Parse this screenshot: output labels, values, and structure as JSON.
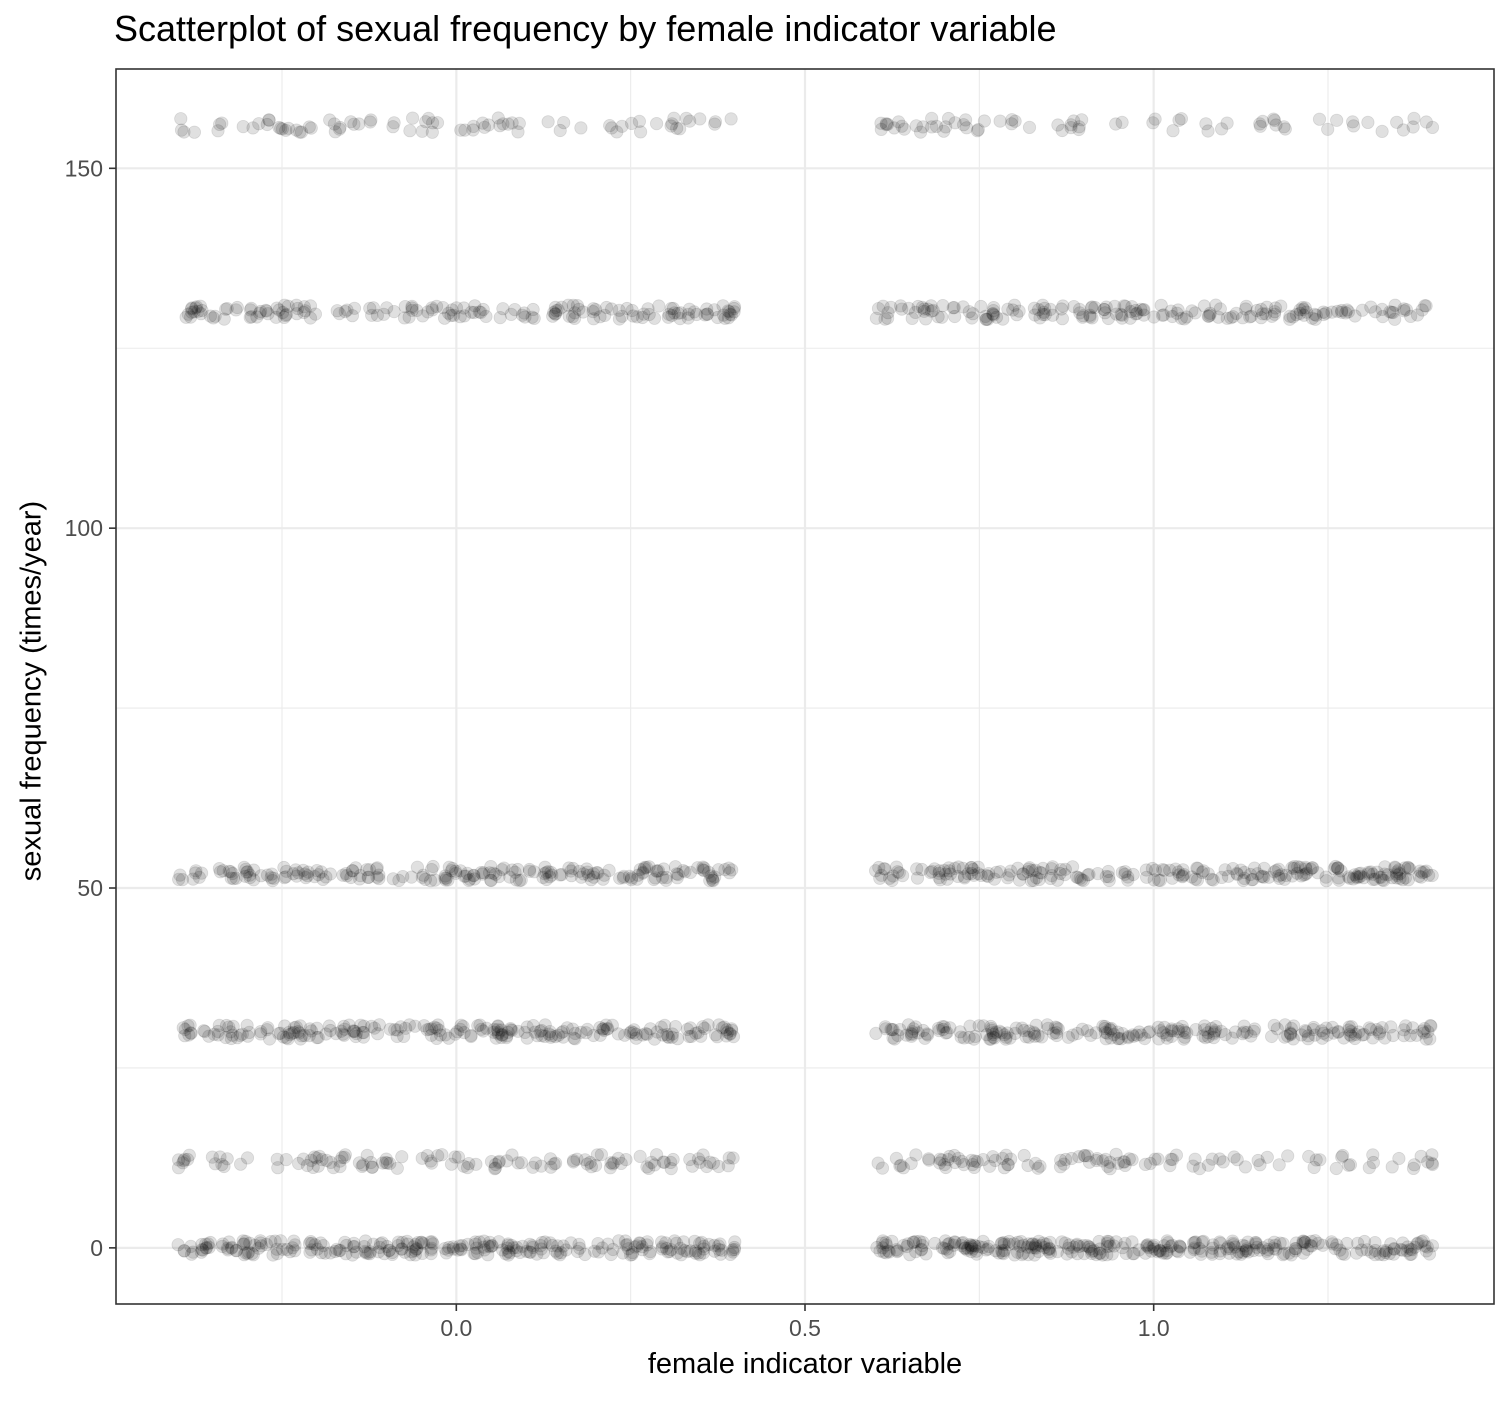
{
  "chart_data": {
    "type": "scatter",
    "title": "Scatterplot of sexual frequency by female indicator variable",
    "xlabel": "female indicator variable",
    "ylabel": "sexual frequency (times/year)",
    "x_ticks": [
      "0.0",
      "0.5",
      "1.0"
    ],
    "y_ticks": [
      "0",
      "50",
      "100",
      "150"
    ],
    "xlim": [
      -0.488,
      1.488
    ],
    "ylim": [
      -7.8,
      163.8
    ],
    "grid": true,
    "legend": "none",
    "jitter": {
      "x_width": 0.4,
      "y_height": 1.0
    },
    "point_style": {
      "color": "#000000",
      "alpha": 0.12
    },
    "series": [
      {
        "groups": [
          {
            "x": 0,
            "y": 0,
            "n": 260
          },
          {
            "x": 0,
            "y": 12,
            "n": 120
          },
          {
            "x": 0,
            "y": 30,
            "n": 220
          },
          {
            "x": 0,
            "y": 52,
            "n": 200
          },
          {
            "x": 0,
            "y": 130,
            "n": 170
          },
          {
            "x": 0,
            "y": 156,
            "n": 80
          },
          {
            "x": 1,
            "y": 0,
            "n": 300
          },
          {
            "x": 1,
            "y": 12,
            "n": 110
          },
          {
            "x": 1,
            "y": 30,
            "n": 220
          },
          {
            "x": 1,
            "y": 52,
            "n": 230
          },
          {
            "x": 1,
            "y": 130,
            "n": 180
          },
          {
            "x": 1,
            "y": 156,
            "n": 70
          }
        ]
      }
    ]
  },
  "colors": {
    "grid": "#ebebeb",
    "panel_border": "#333333",
    "tick_text": "#4d4d4d",
    "point": "#000000"
  }
}
